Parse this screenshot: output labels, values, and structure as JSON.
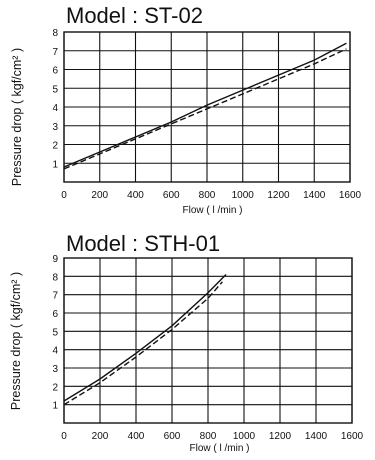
{
  "chart_data": [
    {
      "type": "line",
      "title": "Model : ST-02",
      "xlabel": "Flow ( l /min )",
      "ylabel": "Pressure drop ( kgf/cm² )",
      "xlim": [
        0,
        1600
      ],
      "ylim": [
        0,
        8
      ],
      "xticks": [
        "0",
        "200",
        "400",
        "600",
        "800",
        "1000",
        "1200",
        "1400",
        "1600"
      ],
      "yticks": [
        "1",
        "2",
        "3",
        "4",
        "5",
        "6",
        "7",
        "8"
      ],
      "grid": true,
      "series": [
        {
          "x": [
            0,
            200,
            400,
            600,
            800,
            1000,
            1200,
            1400,
            1580
          ],
          "y": [
            0.8,
            1.6,
            2.4,
            3.2,
            4.1,
            4.9,
            5.7,
            6.5,
            7.4
          ]
        },
        {
          "x": [
            0,
            200,
            400,
            600,
            800,
            1000,
            1200,
            1400,
            1580
          ],
          "y": [
            0.7,
            1.5,
            2.3,
            3.1,
            3.9,
            4.7,
            5.5,
            6.3,
            7.1
          ]
        }
      ]
    },
    {
      "type": "line",
      "title": "Model : STH-01",
      "xlabel": "Flow ( l /min )",
      "ylabel": "Pressure drop ( kgf/cm² )",
      "xlim": [
        0,
        1600
      ],
      "ylim": [
        0,
        9
      ],
      "xticks": [
        "0",
        "200",
        "400",
        "600",
        "800",
        "1000",
        "1200",
        "1400",
        "1600"
      ],
      "yticks": [
        "1",
        "2",
        "3",
        "4",
        "5",
        "6",
        "7",
        "8",
        "9"
      ],
      "grid": true,
      "series": [
        {
          "x": [
            0,
            200,
            400,
            600,
            800,
            900
          ],
          "y": [
            1.2,
            2.4,
            3.8,
            5.3,
            7.1,
            8.1
          ]
        },
        {
          "x": [
            0,
            200,
            400,
            600,
            800,
            880
          ],
          "y": [
            1.0,
            2.2,
            3.6,
            5.1,
            6.8,
            7.7
          ]
        }
      ]
    }
  ]
}
